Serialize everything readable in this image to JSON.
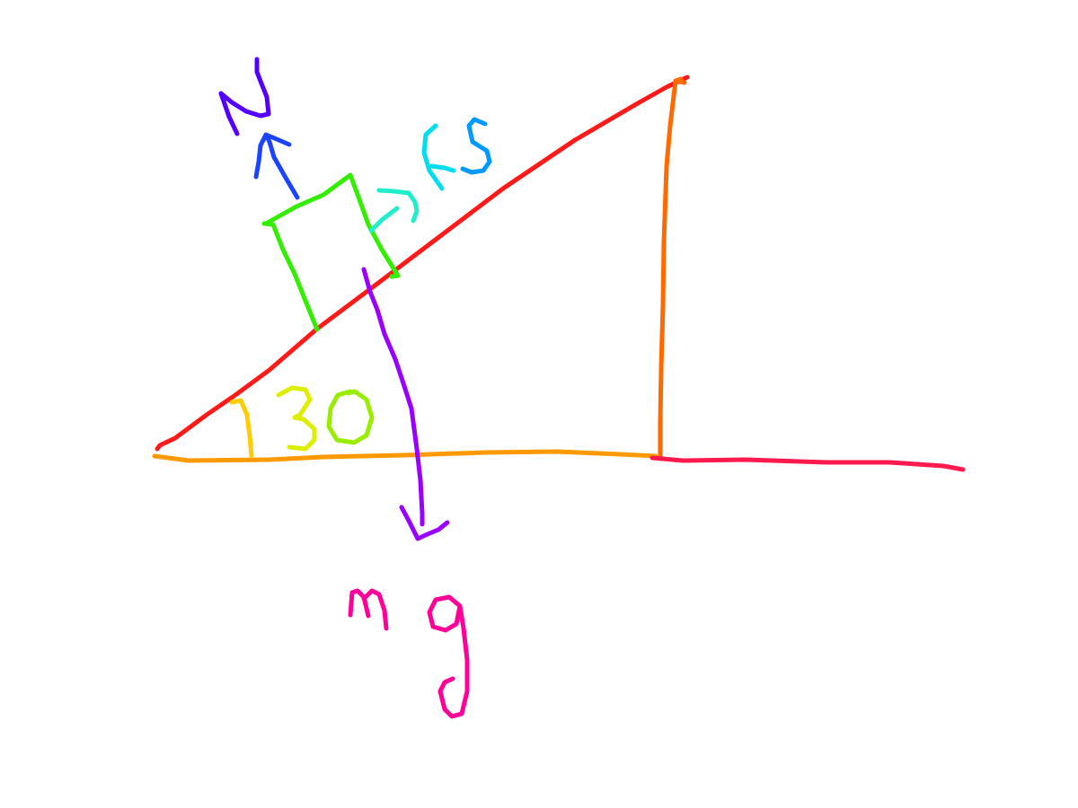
{
  "diagram": {
    "labels": {
      "normal_force": "N",
      "static_friction": "fs",
      "angle": "30",
      "weight": "mg"
    },
    "colors": {
      "incline": "#ff1a1a",
      "base": "#ff9900",
      "vertical_side": "#ff6a00",
      "ground_extension": "#ff1a4d",
      "block": "#33ee00",
      "normal_arrow": "#1a44ff",
      "normal_label": "#5500ff",
      "friction_arrow": "#22eecc",
      "friction_label_f": "#00ddee",
      "friction_label_s": "#0099ff",
      "weight_arrow": "#9900ff",
      "weight_label": "#ff0099",
      "angle_arc": "#ffcc00",
      "angle_text_3": "#ddee00",
      "angle_text_0": "#99ee00"
    }
  }
}
